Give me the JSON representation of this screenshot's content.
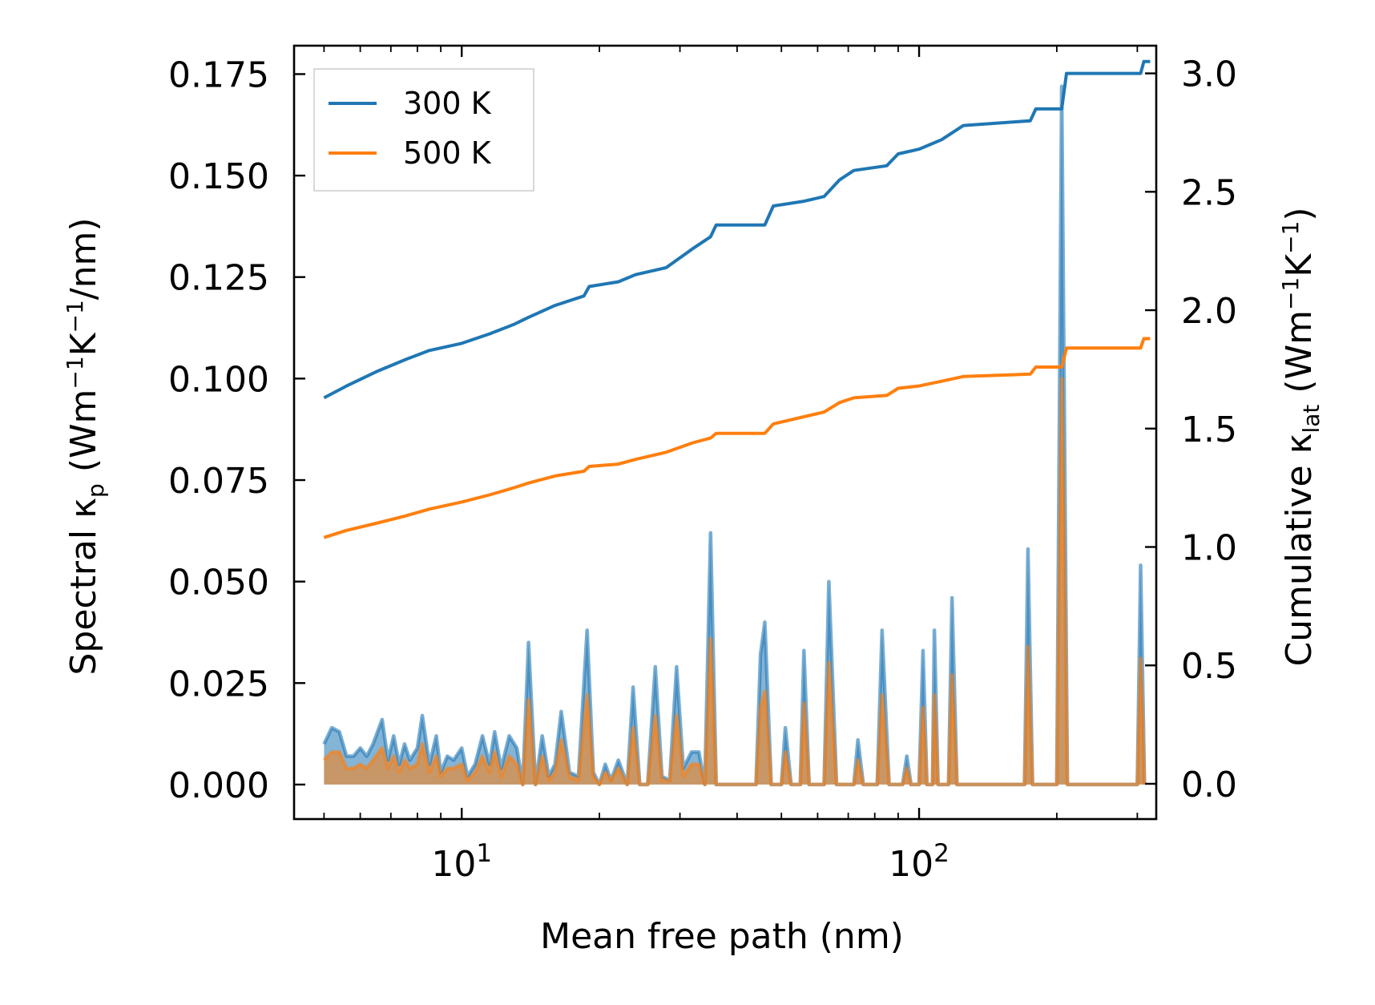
{
  "chart_data": {
    "type": "line",
    "title": "",
    "xlabel": "Mean free path (nm)",
    "xscale": "log",
    "xlim": [
      4.3,
      330
    ],
    "ylabel_left": {
      "main": "Spectral κ",
      "sub": "p",
      "units_open": " (Wm",
      "sup1": "−1",
      "k": "K",
      "sup2": "−1",
      "units_close": "/nm)"
    },
    "ylabel_right": {
      "main": "Cumulative κ",
      "sub": "lat",
      "units_open": " (Wm",
      "sup1": "−1",
      "k": "K",
      "sup2": "−1",
      "units_close": ")"
    },
    "ylim_left": [
      -0.0085,
      0.182
    ],
    "ylim_right": [
      -0.149,
      3.117
    ],
    "xticks_major": [
      {
        "value": 10,
        "base": "10",
        "exp": "1"
      },
      {
        "value": 100,
        "base": "10",
        "exp": "2"
      }
    ],
    "yticks_left": [
      {
        "value": 0.0,
        "label": "0.000"
      },
      {
        "value": 0.025,
        "label": "0.025"
      },
      {
        "value": 0.05,
        "label": "0.050"
      },
      {
        "value": 0.075,
        "label": "0.075"
      },
      {
        "value": 0.1,
        "label": "0.100"
      },
      {
        "value": 0.125,
        "label": "0.125"
      },
      {
        "value": 0.15,
        "label": "0.150"
      },
      {
        "value": 0.175,
        "label": "0.175"
      }
    ],
    "yticks_right": [
      {
        "value": 0.0,
        "label": "0.0"
      },
      {
        "value": 0.5,
        "label": "0.5"
      },
      {
        "value": 1.0,
        "label": "1.0"
      },
      {
        "value": 1.5,
        "label": "1.5"
      },
      {
        "value": 2.0,
        "label": "2.0"
      },
      {
        "value": 2.5,
        "label": "2.5"
      },
      {
        "value": 3.0,
        "label": "3.0"
      }
    ],
    "legend": {
      "placement": "upper-left"
    },
    "series": [
      {
        "name": "300 K",
        "color": "#1f77b4",
        "cumulative": [
          [
            5.0,
            1.63
          ],
          [
            5.6,
            1.68
          ],
          [
            6.5,
            1.74
          ],
          [
            7.5,
            1.79
          ],
          [
            8.5,
            1.83
          ],
          [
            10,
            1.86
          ],
          [
            11.5,
            1.9
          ],
          [
            13,
            1.94
          ],
          [
            14,
            1.97
          ],
          [
            16,
            2.02
          ],
          [
            18.5,
            2.06
          ],
          [
            19,
            2.1
          ],
          [
            22,
            2.12
          ],
          [
            24,
            2.15
          ],
          [
            28,
            2.18
          ],
          [
            32,
            2.26
          ],
          [
            35,
            2.31
          ],
          [
            36,
            2.36
          ],
          [
            46,
            2.36
          ],
          [
            48,
            2.44
          ],
          [
            56,
            2.46
          ],
          [
            62,
            2.48
          ],
          [
            67,
            2.55
          ],
          [
            72,
            2.59
          ],
          [
            85,
            2.61
          ],
          [
            90,
            2.66
          ],
          [
            100,
            2.68
          ],
          [
            112,
            2.72
          ],
          [
            125,
            2.78
          ],
          [
            175,
            2.8
          ],
          [
            180,
            2.85
          ],
          [
            205,
            2.85
          ],
          [
            210,
            3.0
          ],
          [
            305,
            3.0
          ],
          [
            310,
            3.05
          ],
          [
            320,
            3.05
          ]
        ],
        "spectral": [
          [
            5.0,
            0.01
          ],
          [
            5.2,
            0.014
          ],
          [
            5.4,
            0.013
          ],
          [
            5.6,
            0.007
          ],
          [
            5.8,
            0.007
          ],
          [
            6.0,
            0.009
          ],
          [
            6.2,
            0.007
          ],
          [
            6.4,
            0.01
          ],
          [
            6.7,
            0.016
          ],
          [
            6.9,
            0.006
          ],
          [
            7.1,
            0.012
          ],
          [
            7.3,
            0.005
          ],
          [
            7.5,
            0.01
          ],
          [
            7.7,
            0.006
          ],
          [
            8.0,
            0.009
          ],
          [
            8.2,
            0.017
          ],
          [
            8.5,
            0.005
          ],
          [
            8.8,
            0.012
          ],
          [
            9.0,
            0.003
          ],
          [
            9.3,
            0.007
          ],
          [
            9.6,
            0.006
          ],
          [
            10,
            0.009
          ],
          [
            10.3,
            0.002
          ],
          [
            10.7,
            0.005
          ],
          [
            11.1,
            0.012
          ],
          [
            11.5,
            0.005
          ],
          [
            11.8,
            0.013
          ],
          [
            12.2,
            0.004
          ],
          [
            12.7,
            0.012
          ],
          [
            13.2,
            0.009
          ],
          [
            13.6,
            0.0
          ],
          [
            14,
            0.035
          ],
          [
            14.5,
            0.0
          ],
          [
            15,
            0.012
          ],
          [
            15.5,
            0.002
          ],
          [
            16,
            0.005
          ],
          [
            16.5,
            0.018
          ],
          [
            17.2,
            0.003
          ],
          [
            18,
            0.002
          ],
          [
            18.8,
            0.038
          ],
          [
            19.4,
            0.003
          ],
          [
            20,
            0.0
          ],
          [
            20.6,
            0.005
          ],
          [
            21.2,
            0.001
          ],
          [
            22,
            0.006
          ],
          [
            23,
            0.0
          ],
          [
            23.7,
            0.024
          ],
          [
            24.5,
            0.0
          ],
          [
            25.5,
            0.0
          ],
          [
            26.5,
            0.029
          ],
          [
            27.4,
            0.002
          ],
          [
            28.5,
            0.001
          ],
          [
            29.5,
            0.029
          ],
          [
            30.5,
            0.004
          ],
          [
            31.8,
            0.008
          ],
          [
            33,
            0.008
          ],
          [
            34,
            0.0
          ],
          [
            35,
            0.062
          ],
          [
            36,
            0.0
          ],
          [
            44,
            0.0
          ],
          [
            45,
            0.032
          ],
          [
            46,
            0.04
          ],
          [
            47.5,
            0.0
          ],
          [
            50,
            0.0
          ],
          [
            51,
            0.014
          ],
          [
            52.5,
            0.0
          ],
          [
            55,
            0.0
          ],
          [
            56,
            0.033
          ],
          [
            57.5,
            0.0
          ],
          [
            62,
            0.0
          ],
          [
            63.5,
            0.05
          ],
          [
            66,
            0.0
          ],
          [
            72,
            0.0
          ],
          [
            73.5,
            0.011
          ],
          [
            75.5,
            0.0
          ],
          [
            81,
            0.0
          ],
          [
            83,
            0.038
          ],
          [
            86,
            0.0
          ],
          [
            92,
            0.0
          ],
          [
            94,
            0.007
          ],
          [
            96,
            0.0
          ],
          [
            100,
            0.0
          ],
          [
            102,
            0.033
          ],
          [
            104,
            0.0
          ],
          [
            107,
            0.0
          ],
          [
            108,
            0.038
          ],
          [
            110,
            0.0
          ],
          [
            116,
            0.0
          ],
          [
            118,
            0.046
          ],
          [
            121,
            0.0
          ],
          [
            170,
            0.0
          ],
          [
            173,
            0.058
          ],
          [
            177,
            0.0
          ],
          [
            200,
            0.0
          ],
          [
            205,
            0.172
          ],
          [
            211,
            0.0
          ],
          [
            300,
            0.0
          ],
          [
            305,
            0.054
          ],
          [
            311,
            0.0
          ]
        ]
      },
      {
        "name": "500 K",
        "color": "#ff7f0e",
        "cumulative": [
          [
            5.0,
            1.04
          ],
          [
            5.6,
            1.07
          ],
          [
            6.5,
            1.1
          ],
          [
            7.5,
            1.13
          ],
          [
            8.5,
            1.16
          ],
          [
            10,
            1.19
          ],
          [
            11.5,
            1.22
          ],
          [
            13,
            1.25
          ],
          [
            14,
            1.27
          ],
          [
            16,
            1.3
          ],
          [
            18.5,
            1.32
          ],
          [
            19,
            1.34
          ],
          [
            22,
            1.35
          ],
          [
            24,
            1.37
          ],
          [
            28,
            1.4
          ],
          [
            32,
            1.44
          ],
          [
            35,
            1.46
          ],
          [
            36,
            1.48
          ],
          [
            46,
            1.48
          ],
          [
            48,
            1.52
          ],
          [
            56,
            1.55
          ],
          [
            62,
            1.57
          ],
          [
            67,
            1.61
          ],
          [
            72,
            1.63
          ],
          [
            85,
            1.64
          ],
          [
            90,
            1.67
          ],
          [
            100,
            1.68
          ],
          [
            112,
            1.7
          ],
          [
            125,
            1.72
          ],
          [
            175,
            1.73
          ],
          [
            180,
            1.76
          ],
          [
            205,
            1.76
          ],
          [
            210,
            1.84
          ],
          [
            305,
            1.84
          ],
          [
            310,
            1.88
          ],
          [
            320,
            1.88
          ]
        ],
        "spectral": [
          [
            5.0,
            0.006
          ],
          [
            5.2,
            0.008
          ],
          [
            5.4,
            0.008
          ],
          [
            5.6,
            0.004
          ],
          [
            5.8,
            0.004
          ],
          [
            6.0,
            0.005
          ],
          [
            6.2,
            0.004
          ],
          [
            6.4,
            0.006
          ],
          [
            6.7,
            0.009
          ],
          [
            6.9,
            0.004
          ],
          [
            7.1,
            0.007
          ],
          [
            7.3,
            0.003
          ],
          [
            7.5,
            0.006
          ],
          [
            7.7,
            0.004
          ],
          [
            8.0,
            0.005
          ],
          [
            8.2,
            0.01
          ],
          [
            8.5,
            0.003
          ],
          [
            8.8,
            0.007
          ],
          [
            9.0,
            0.002
          ],
          [
            9.3,
            0.004
          ],
          [
            9.6,
            0.004
          ],
          [
            10,
            0.005
          ],
          [
            10.3,
            0.001
          ],
          [
            10.7,
            0.003
          ],
          [
            11.1,
            0.007
          ],
          [
            11.5,
            0.003
          ],
          [
            11.8,
            0.008
          ],
          [
            12.2,
            0.002
          ],
          [
            12.7,
            0.007
          ],
          [
            13.2,
            0.005
          ],
          [
            13.6,
            0.0
          ],
          [
            14,
            0.021
          ],
          [
            14.5,
            0.0
          ],
          [
            15,
            0.007
          ],
          [
            15.5,
            0.001
          ],
          [
            16,
            0.003
          ],
          [
            16.5,
            0.011
          ],
          [
            17.2,
            0.002
          ],
          [
            18,
            0.001
          ],
          [
            18.8,
            0.022
          ],
          [
            19.4,
            0.002
          ],
          [
            20,
            0.0
          ],
          [
            20.6,
            0.003
          ],
          [
            21.2,
            0.001
          ],
          [
            22,
            0.004
          ],
          [
            23,
            0.0
          ],
          [
            23.7,
            0.014
          ],
          [
            24.5,
            0.0
          ],
          [
            25.5,
            0.0
          ],
          [
            26.5,
            0.017
          ],
          [
            27.4,
            0.001
          ],
          [
            28.5,
            0.001
          ],
          [
            29.5,
            0.017
          ],
          [
            30.5,
            0.002
          ],
          [
            31.8,
            0.005
          ],
          [
            33,
            0.005
          ],
          [
            34,
            0.0
          ],
          [
            35,
            0.036
          ],
          [
            36,
            0.0
          ],
          [
            44,
            0.0
          ],
          [
            45,
            0.019
          ],
          [
            46,
            0.023
          ],
          [
            47.5,
            0.0
          ],
          [
            50,
            0.0
          ],
          [
            51,
            0.008
          ],
          [
            52.5,
            0.0
          ],
          [
            55,
            0.0
          ],
          [
            56,
            0.02
          ],
          [
            57.5,
            0.0
          ],
          [
            62,
            0.0
          ],
          [
            63.5,
            0.03
          ],
          [
            66,
            0.0
          ],
          [
            72,
            0.0
          ],
          [
            73.5,
            0.006
          ],
          [
            75.5,
            0.0
          ],
          [
            81,
            0.0
          ],
          [
            83,
            0.022
          ],
          [
            86,
            0.0
          ],
          [
            92,
            0.0
          ],
          [
            94,
            0.004
          ],
          [
            96,
            0.0
          ],
          [
            100,
            0.0
          ],
          [
            102,
            0.019
          ],
          [
            104,
            0.0
          ],
          [
            107,
            0.0
          ],
          [
            108,
            0.022
          ],
          [
            110,
            0.0
          ],
          [
            116,
            0.0
          ],
          [
            118,
            0.027
          ],
          [
            121,
            0.0
          ],
          [
            170,
            0.0
          ],
          [
            173,
            0.034
          ],
          [
            177,
            0.0
          ],
          [
            200,
            0.0
          ],
          [
            205,
            0.1
          ],
          [
            211,
            0.0
          ],
          [
            300,
            0.0
          ],
          [
            305,
            0.031
          ],
          [
            311,
            0.0
          ]
        ]
      }
    ]
  }
}
